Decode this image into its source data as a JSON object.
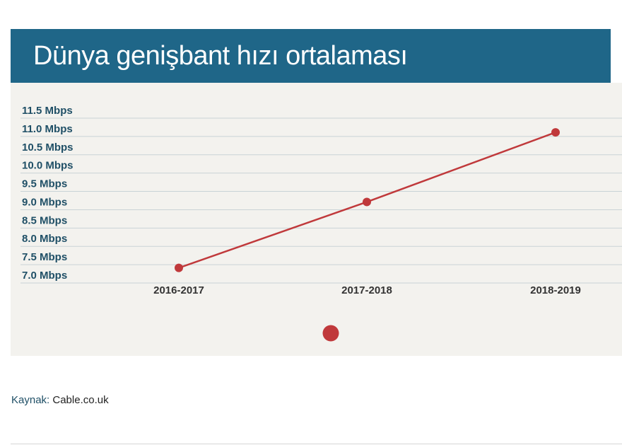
{
  "header": {
    "title": "Dünya genişbant hızı ortalaması"
  },
  "chart_data": {
    "type": "line",
    "title": "Dünya genişbant hızı ortalaması",
    "categories": [
      "2016-2017",
      "2017-2018",
      "2018-2019"
    ],
    "series": [
      {
        "values": [
          7.2,
          9.0,
          10.9
        ]
      }
    ],
    "y_ticks": [
      "7.0 Mbps",
      "7.5 Mbps",
      "8.0 Mbps",
      "8.5 Mbps",
      "9.0 Mbps",
      "9.5 Mbps",
      "10.0 Mbps",
      "10.5 Mbps",
      "11.0 Mbps",
      "11.5 Mbps"
    ],
    "ylim": [
      7.0,
      11.5
    ],
    "grid": true,
    "xlabel": "",
    "ylabel": "",
    "colors": {
      "line": "#c0393b",
      "grid": "#c9d3d6"
    }
  },
  "footer": {
    "source_label": "Kaynak:",
    "source_name": "Cable.co.uk"
  }
}
